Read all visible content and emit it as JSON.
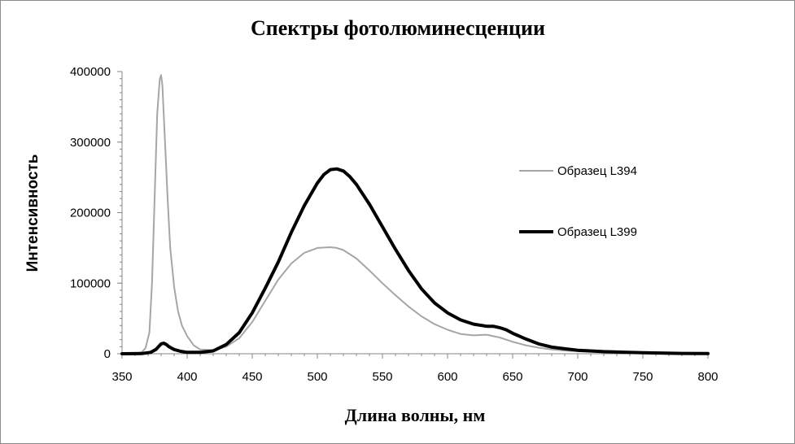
{
  "chart_data": {
    "type": "line",
    "title": "Спектры фотолюминесценции",
    "xlabel": "Длина волны, нм",
    "ylabel": "Интенсивность",
    "xlim": [
      350,
      800
    ],
    "ylim": [
      0,
      400000
    ],
    "x_ticks": [
      "350",
      "400",
      "450",
      "500",
      "550",
      "600",
      "650",
      "700",
      "750",
      "800"
    ],
    "y_ticks": [
      "0",
      "100000",
      "200000",
      "300000",
      "400000"
    ],
    "grid": false,
    "legend_position": "right",
    "series": [
      {
        "name": "Образец L394",
        "color": "#a6a6a6",
        "x": [
          350,
          360,
          365,
          368,
          371,
          373,
          375,
          377,
          379,
          380,
          381,
          383,
          385,
          387,
          390,
          393,
          396,
          400,
          405,
          410,
          420,
          430,
          440,
          450,
          460,
          470,
          480,
          490,
          500,
          510,
          515,
          520,
          530,
          540,
          550,
          560,
          570,
          580,
          590,
          600,
          610,
          620,
          630,
          640,
          650,
          660,
          670,
          680,
          690,
          700,
          720,
          750,
          780,
          800
        ],
        "y": [
          0,
          500,
          2000,
          8000,
          30000,
          100000,
          220000,
          340000,
          390000,
          395000,
          380000,
          300000,
          220000,
          150000,
          95000,
          60000,
          40000,
          25000,
          12000,
          6000,
          5000,
          10000,
          22000,
          45000,
          75000,
          105000,
          128000,
          143000,
          150000,
          151000,
          150000,
          147000,
          135000,
          118000,
          100000,
          83000,
          67000,
          53000,
          42000,
          34000,
          28000,
          26000,
          27000,
          23000,
          17000,
          12000,
          8500,
          6000,
          4500,
          3500,
          2000,
          800,
          300,
          100
        ]
      },
      {
        "name": "Образец L399",
        "color": "#000000",
        "x": [
          350,
          365,
          372,
          376,
          378,
          380,
          382,
          384,
          386,
          388,
          390,
          395,
          400,
          410,
          420,
          430,
          440,
          450,
          460,
          470,
          480,
          490,
          500,
          505,
          510,
          515,
          520,
          525,
          530,
          540,
          550,
          560,
          570,
          580,
          590,
          600,
          610,
          620,
          630,
          635,
          640,
          645,
          650,
          660,
          670,
          680,
          690,
          700,
          720,
          750,
          780,
          800
        ],
        "y": [
          0,
          200,
          2000,
          6000,
          10000,
          14000,
          15000,
          13000,
          10000,
          8000,
          6000,
          3500,
          2000,
          2000,
          4000,
          13000,
          30000,
          58000,
          93000,
          130000,
          172000,
          210000,
          242000,
          254000,
          261000,
          262000,
          259000,
          251000,
          240000,
          212000,
          180000,
          148000,
          118000,
          92000,
          72000,
          58000,
          48000,
          42000,
          39000,
          39000,
          37000,
          34000,
          29000,
          21000,
          14000,
          9500,
          7000,
          5000,
          3000,
          1500,
          500,
          200
        ]
      }
    ]
  }
}
